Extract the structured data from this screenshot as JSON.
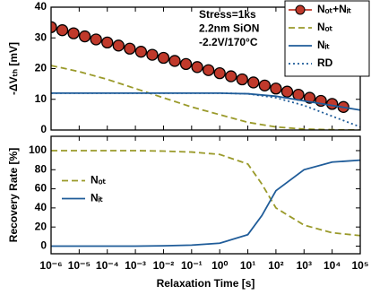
{
  "chart_data": [
    {
      "type": "line",
      "ylabel": "-ΔVₜₕ [mV]",
      "annotations": [
        "Stress=1ks",
        "2.2nm SiON",
        "-2.2V/170°C"
      ],
      "xscale": "log",
      "xlim": [
        1e-06,
        100000.0
      ],
      "ylim": [
        0,
        40
      ],
      "yticks": [
        0,
        10,
        20,
        30,
        40
      ],
      "legend": "upper right",
      "series": [
        {
          "name": "Nₒₜ+Nᵢₜ",
          "color": "#c0392b",
          "dash": "solid",
          "marker": true,
          "x": [
            1e-06,
            2.512e-06,
            6.31e-06,
            1.585e-05,
            3.981e-05,
            0.0001,
            0.0002512,
            0.000631,
            0.001585,
            0.003981,
            0.01,
            0.02512,
            0.0631,
            0.1585,
            0.3981,
            1,
            2.512,
            6.31,
            15.85,
            39.81,
            100,
            251.2,
            631,
            1585,
            3981,
            10000,
            25120
          ],
          "values": [
            33.5,
            32.5,
            31.5,
            30.5,
            29.5,
            28.5,
            27.5,
            26.5,
            25.5,
            24.5,
            23.5,
            22.5,
            21.5,
            20.5,
            19.5,
            18.5,
            17.5,
            16.5,
            15.5,
            14.5,
            13.5,
            12.5,
            11.5,
            10.5,
            9.5,
            8.5,
            7.5
          ]
        },
        {
          "name": "Nₒₜ",
          "color": "#9a9a2a",
          "dash": "dashed",
          "marker": false,
          "x": [
            1e-06,
            1e-05,
            0.0001,
            0.001,
            0.01,
            0.1,
            1,
            10,
            100,
            1000,
            10000,
            100000
          ],
          "values": [
            21,
            19,
            16.5,
            13.5,
            10.5,
            7.5,
            5,
            2.5,
            1,
            0.3,
            0.1,
            0
          ]
        },
        {
          "name": "Nᵢₜ",
          "color": "#1f5c99",
          "dash": "solid",
          "marker": false,
          "x": [
            1e-06,
            1e-05,
            0.0001,
            0.001,
            0.01,
            0.1,
            1,
            10,
            100,
            1000,
            10000,
            100000
          ],
          "values": [
            12,
            12,
            12,
            12,
            12,
            12,
            12,
            11.8,
            11,
            9.5,
            8,
            6.5
          ]
        },
        {
          "name": "RD",
          "color": "#1f5c99",
          "dash": "dotted",
          "marker": false,
          "x": [
            1e-06,
            1e-05,
            0.0001,
            0.001,
            0.01,
            0.1,
            1,
            10,
            100,
            1000,
            10000,
            100000
          ],
          "values": [
            12,
            12,
            12,
            12,
            12,
            12,
            12,
            11.8,
            10.5,
            8,
            4.5,
            1
          ]
        }
      ]
    },
    {
      "type": "line",
      "ylabel": "Recovery Rate [%]",
      "xlabel": "Relaxation Time [s]",
      "xscale": "log",
      "xlim": [
        1e-06,
        100000.0
      ],
      "ylim": [
        -8,
        115
      ],
      "yticks": [
        0,
        20,
        40,
        60,
        80,
        100
      ],
      "xticks": [
        {
          "value": 1e-06,
          "label": "10⁻⁶"
        },
        {
          "value": 1e-05,
          "label": "10⁻⁵"
        },
        {
          "value": 0.0001,
          "label": "10⁻⁴"
        },
        {
          "value": 0.001,
          "label": "10⁻³"
        },
        {
          "value": 0.01,
          "label": "10⁻²"
        },
        {
          "value": 0.1,
          "label": "10⁻¹"
        },
        {
          "value": 1,
          "label": "10⁰"
        },
        {
          "value": 10,
          "label": "10¹"
        },
        {
          "value": 100,
          "label": "10²"
        },
        {
          "value": 1000,
          "label": "10³"
        },
        {
          "value": 10000,
          "label": "10⁴"
        },
        {
          "value": 100000,
          "label": "10⁵"
        }
      ],
      "legend": "center left",
      "series": [
        {
          "name": "Nₒₜ",
          "color": "#9a9a2a",
          "dash": "dashed",
          "marker": false,
          "x": [
            1e-06,
            0.0001,
            0.001,
            0.01,
            0.1,
            1,
            10,
            31.62,
            100,
            1000,
            10000,
            100000
          ],
          "values": [
            100,
            100,
            100,
            99.5,
            98.5,
            96,
            86,
            65,
            40,
            22,
            14,
            11
          ]
        },
        {
          "name": "Nᵢₜ",
          "color": "#1f5c99",
          "dash": "solid",
          "marker": false,
          "x": [
            1e-06,
            0.0001,
            0.001,
            0.01,
            0.1,
            1,
            10,
            31.62,
            100,
            1000,
            10000,
            100000
          ],
          "values": [
            0,
            0,
            0,
            0.3,
            1,
            3,
            12,
            32,
            58,
            80,
            88,
            90
          ]
        }
      ]
    }
  ]
}
